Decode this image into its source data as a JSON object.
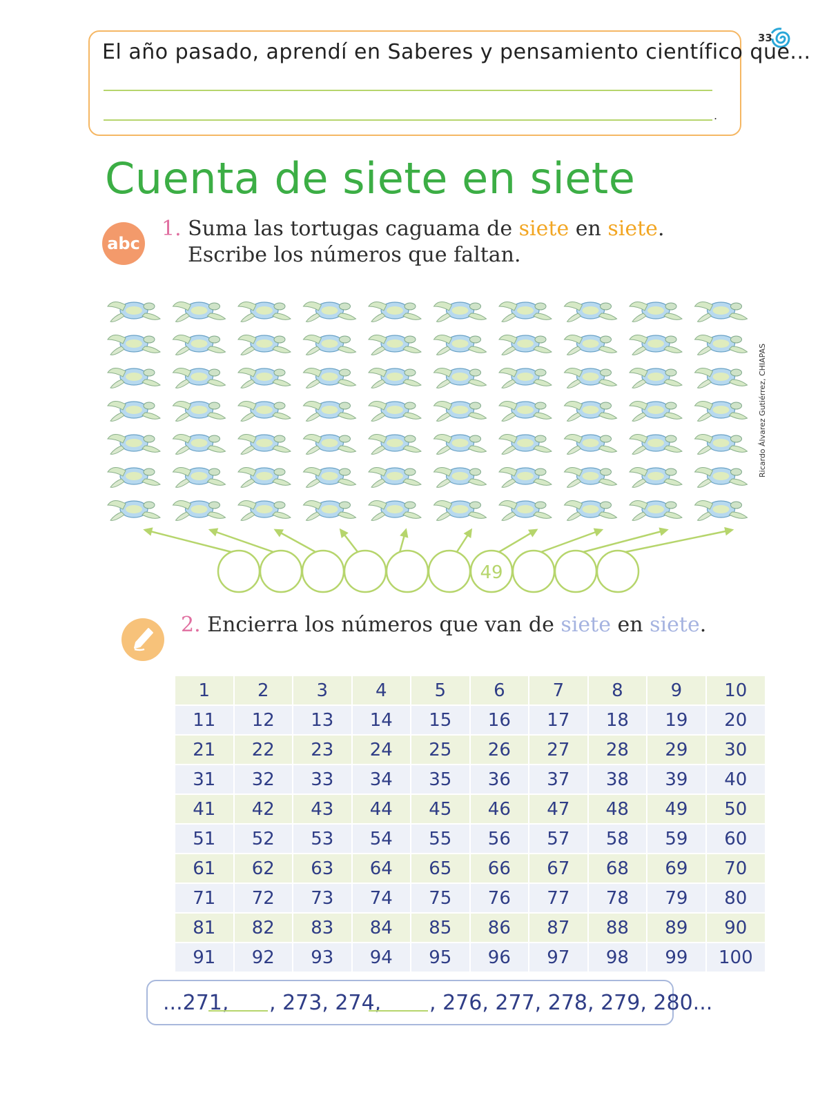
{
  "page_number": "33",
  "reflection": {
    "prompt": "El año pasado, aprendí en Saberes y pensamiento científico que...",
    "end_mark": "."
  },
  "title": "Cuenta de siete en siete",
  "activity1": {
    "number": "1.",
    "icon": "abc-icon",
    "badge_text": "abc",
    "line1_prefix": "Suma las tortugas caguama de ",
    "word1": "siete",
    "middle": " en ",
    "word2": "siete",
    "line1_end": ".",
    "line2": "Escribe los números que faltan.",
    "turtle_columns": 10,
    "turtle_rows": 7,
    "circles": [
      "",
      "",
      "",
      "",
      "",
      "",
      "49",
      "",
      "",
      ""
    ]
  },
  "activity2": {
    "number": "2.",
    "icon": "pencil-icon",
    "prefix": "Encierra los números que van de ",
    "word1": "siete",
    "middle": " en ",
    "word2": "siete",
    "end": ".",
    "grid": [
      [
        "1",
        "2",
        "3",
        "4",
        "5",
        "6",
        "7",
        "8",
        "9",
        "10"
      ],
      [
        "11",
        "12",
        "13",
        "14",
        "15",
        "16",
        "17",
        "18",
        "19",
        "20"
      ],
      [
        "21",
        "22",
        "23",
        "24",
        "25",
        "26",
        "27",
        "28",
        "29",
        "30"
      ],
      [
        "31",
        "32",
        "33",
        "34",
        "35",
        "36",
        "37",
        "38",
        "39",
        "40"
      ],
      [
        "41",
        "42",
        "43",
        "44",
        "45",
        "46",
        "47",
        "48",
        "49",
        "50"
      ],
      [
        "51",
        "52",
        "53",
        "54",
        "55",
        "56",
        "57",
        "58",
        "59",
        "60"
      ],
      [
        "61",
        "62",
        "63",
        "64",
        "65",
        "66",
        "67",
        "68",
        "69",
        "70"
      ],
      [
        "71",
        "72",
        "73",
        "74",
        "75",
        "76",
        "77",
        "78",
        "79",
        "80"
      ],
      [
        "81",
        "82",
        "83",
        "84",
        "85",
        "86",
        "87",
        "88",
        "89",
        "90"
      ],
      [
        "91",
        "92",
        "93",
        "94",
        "95",
        "96",
        "97",
        "98",
        "99",
        "100"
      ]
    ]
  },
  "sequence": {
    "part1": "...271,",
    "part2": ", 273, 274,",
    "part3": ", 276, 277, 278, 279, 280..."
  },
  "credit": "Ricardo Álvarez Gutiérrez, CHIAPAS",
  "colors": {
    "title": "#3cae45",
    "highlight1": "#f2a623",
    "highlight2": "#a5b3e0",
    "box_border": "#f5b764",
    "line": "#b6d56c",
    "table_text": "#2f3d86"
  }
}
